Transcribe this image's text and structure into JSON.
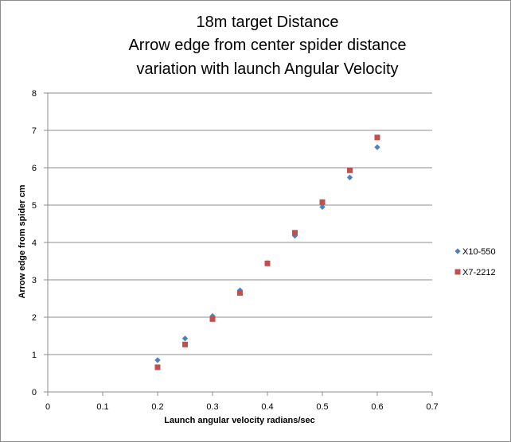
{
  "chart_data": {
    "type": "scatter",
    "title": [
      "18m target Distance",
      "Arrow edge from center spider distance",
      "variation with launch Angular Velocity"
    ],
    "xlabel": "Launch angular  velocity radians/sec",
    "ylabel": "Arrow edge from spider cm",
    "xlim": [
      0,
      0.7
    ],
    "ylim": [
      0,
      8
    ],
    "xticks": [
      0,
      0.1,
      0.2,
      0.3,
      0.4,
      0.5,
      0.6,
      0.7
    ],
    "xtick_labels": [
      "0",
      "0.1",
      "0.2",
      "0.3",
      "0.4",
      "0.5",
      "0.6",
      "0.7"
    ],
    "yticks": [
      0,
      1,
      2,
      3,
      4,
      5,
      6,
      7,
      8
    ],
    "ytick_labels": [
      "0",
      "1",
      "2",
      "3",
      "4",
      "5",
      "6",
      "7",
      "8"
    ],
    "grid": "horizontal",
    "legend_position": "right",
    "series": [
      {
        "name": "X10-550",
        "marker": "diamond",
        "color": "#4f81bd",
        "x": [
          0.2,
          0.25,
          0.3,
          0.35,
          0.4,
          0.45,
          0.5,
          0.55,
          0.6
        ],
        "y": [
          0.85,
          1.43,
          2.03,
          2.72,
          3.45,
          4.18,
          4.95,
          5.74,
          6.55
        ]
      },
      {
        "name": "X7-2212",
        "marker": "square",
        "color": "#c0504d",
        "x": [
          0.2,
          0.25,
          0.3,
          0.35,
          0.4,
          0.45,
          0.5,
          0.55,
          0.6
        ],
        "y": [
          0.66,
          1.27,
          1.95,
          2.65,
          3.44,
          4.26,
          5.08,
          5.93,
          6.81
        ]
      }
    ]
  }
}
